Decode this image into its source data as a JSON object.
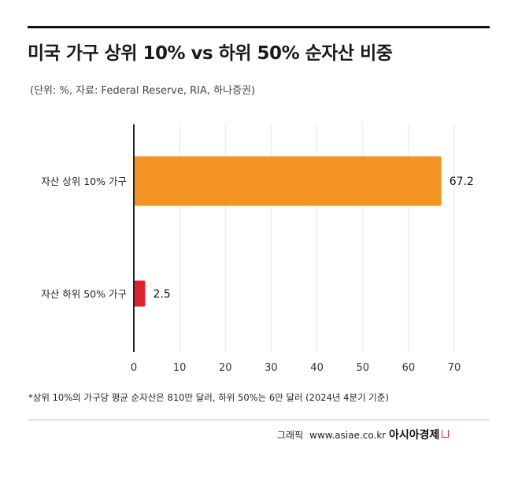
{
  "title": "미국 가구 상위 10% vs 하위 50% 순자산 비중",
  "subtitle": "(단위: %, 자료: Federal Reserve, RIA, 하나증권)",
  "footnote": "*상위 10%의 가구당 평균 순자산은 810만 달러, 하위 50%는 6만 달러 (2024년 4분기 기준)",
  "credit": {
    "label": "그래픽",
    "url": "www.asiae.co.kr",
    "logo": "아시아경제"
  },
  "colors": {
    "bar_top": "#f39322",
    "bar_bottom": "#e0222e",
    "grid": "#e6e6e6",
    "axis": "#222222",
    "logo_accent": "#d7282f"
  },
  "chart_data": {
    "type": "bar",
    "orientation": "horizontal",
    "categories": [
      "자산 상위 10% 가구",
      "자산 하위 50% 가구"
    ],
    "values": [
      67.2,
      2.5
    ],
    "value_labels": [
      "67.2",
      "2.5"
    ],
    "bar_colors": [
      "#f39322",
      "#e0222e"
    ],
    "xlim": [
      0,
      70
    ],
    "xticks": [
      "0",
      "10",
      "20",
      "30",
      "40",
      "50",
      "60",
      "70"
    ],
    "grid": true
  }
}
